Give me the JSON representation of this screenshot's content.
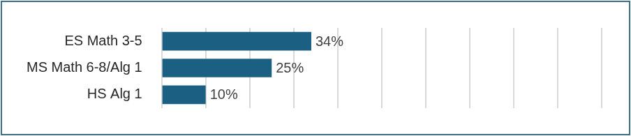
{
  "chart_data": {
    "type": "bar",
    "orientation": "horizontal",
    "categories": [
      "ES Math 3-5",
      "MS Math 6-8/Alg 1",
      "HS Alg 1"
    ],
    "values": [
      34,
      25,
      10
    ],
    "value_labels": [
      "34%",
      "25%",
      "10%"
    ],
    "data_labels": true,
    "color": "#1b5f82",
    "xlim": [
      0,
      100
    ],
    "xticks": [
      0,
      10,
      20,
      30,
      40,
      50,
      60,
      70,
      80,
      90,
      100
    ],
    "grid": true,
    "tick_labels": "y"
  }
}
